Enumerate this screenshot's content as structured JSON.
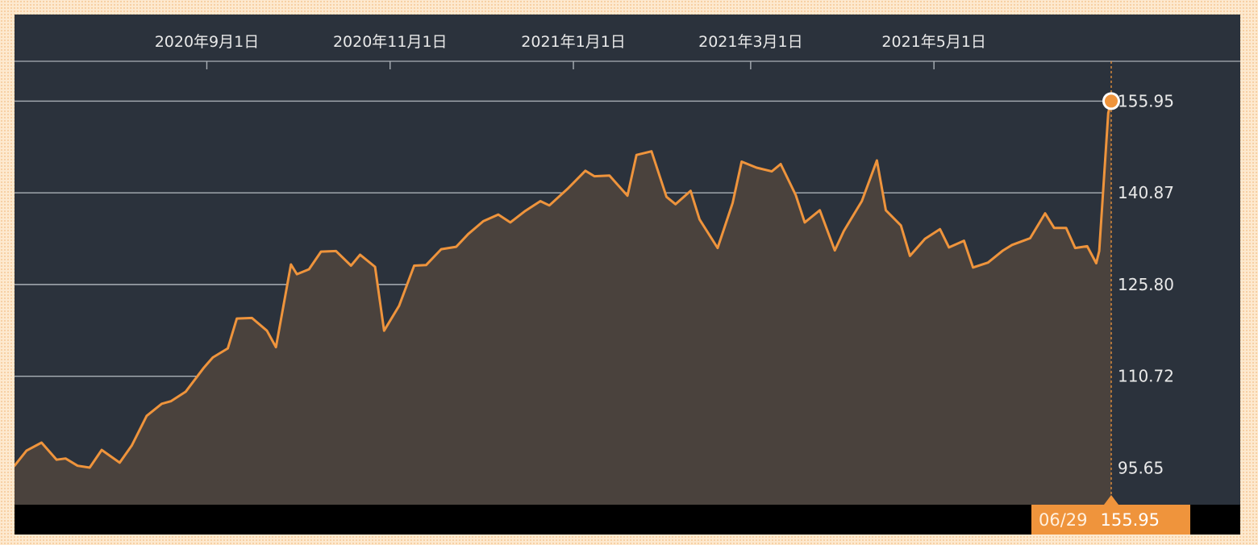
{
  "chart_data": {
    "type": "area",
    "x_tick_labels": [
      "2020年9月1日",
      "2020年11月1日",
      "2021年1月1日",
      "2021年3月1日",
      "2021年5月1日"
    ],
    "x_tick_dates": [
      "2020-09-01",
      "2020-11-01",
      "2021-01-01",
      "2021-03-01",
      "2021-05-01"
    ],
    "y_tick_labels": [
      "155.95",
      "140.87",
      "125.80",
      "110.72",
      "95.65"
    ],
    "y_ticks": [
      155.95,
      140.87,
      125.8,
      110.72,
      95.65
    ],
    "xlim": [
      "2020-06-29",
      "2021-06-29"
    ],
    "ylim": [
      89.6,
      162.5
    ],
    "grid": true,
    "colors": {
      "line": "#ef943c",
      "area": "#4a423d",
      "background": "#2b323c",
      "gridline": "#aab0b6",
      "tick_text": "#e9e9e9",
      "page_background": "#fde9cf"
    },
    "series": [
      {
        "x": [
          "2020-06-29",
          "2020-07-03",
          "2020-07-08",
          "2020-07-13",
          "2020-07-16",
          "2020-07-20",
          "2020-07-24",
          "2020-07-28",
          "2020-08-03",
          "2020-08-07",
          "2020-08-12",
          "2020-08-17",
          "2020-08-20",
          "2020-08-25",
          "2020-08-31",
          "2020-09-03",
          "2020-09-08",
          "2020-09-11",
          "2020-09-16",
          "2020-09-21",
          "2020-09-24",
          "2020-09-29",
          "2020-10-01",
          "2020-10-05",
          "2020-10-09",
          "2020-10-14",
          "2020-10-19",
          "2020-10-22",
          "2020-10-27",
          "2020-10-30",
          "2020-11-04",
          "2020-11-09",
          "2020-11-13",
          "2020-11-18",
          "2020-11-23",
          "2020-11-27",
          "2020-12-02",
          "2020-12-07",
          "2020-12-11",
          "2020-12-16",
          "2020-12-21",
          "2020-12-24",
          "2020-12-30",
          "2021-01-05",
          "2021-01-08",
          "2021-01-13",
          "2021-01-19",
          "2021-01-22",
          "2021-01-27",
          "2021-02-01",
          "2021-02-04",
          "2021-02-09",
          "2021-02-12",
          "2021-02-18",
          "2021-02-23",
          "2021-02-26",
          "2021-03-03",
          "2021-03-08",
          "2021-03-11",
          "2021-03-16",
          "2021-03-19",
          "2021-03-24",
          "2021-03-29",
          "2021-04-01",
          "2021-04-07",
          "2021-04-12",
          "2021-04-15",
          "2021-04-20",
          "2021-04-23",
          "2021-04-28",
          "2021-05-03",
          "2021-05-06",
          "2021-05-11",
          "2021-05-14",
          "2021-05-19",
          "2021-05-24",
          "2021-05-27",
          "2021-06-02",
          "2021-06-07",
          "2021-06-10",
          "2021-06-14",
          "2021-06-17",
          "2021-06-21",
          "2021-06-24",
          "2021-06-25",
          "2021-06-28",
          "2021-06-29"
        ],
        "values": [
          96.0,
          98.5,
          99.8,
          97.0,
          97.2,
          96.0,
          95.7,
          98.6,
          96.5,
          99.3,
          104.2,
          106.2,
          106.6,
          108.2,
          112.1,
          113.8,
          115.3,
          120.2,
          120.3,
          118.2,
          115.5,
          129.1,
          127.5,
          128.3,
          131.2,
          131.3,
          128.9,
          130.7,
          128.7,
          118.2,
          122.3,
          128.9,
          129.0,
          131.6,
          132.0,
          134.1,
          136.2,
          137.3,
          136.0,
          137.9,
          139.5,
          138.8,
          141.5,
          144.5,
          143.6,
          143.7,
          140.4,
          147.1,
          147.7,
          140.2,
          139.0,
          141.2,
          136.5,
          131.8,
          139.2,
          146.0,
          145.0,
          144.4,
          145.6,
          140.5,
          136.0,
          138.0,
          131.4,
          134.6,
          139.5,
          146.2,
          138.0,
          135.5,
          130.5,
          133.3,
          134.9,
          131.9,
          133.0,
          128.6,
          129.4,
          131.4,
          132.3,
          133.4,
          137.5,
          135.1,
          135.1,
          131.8,
          132.1,
          129.3,
          131.3,
          154.0,
          155.95
        ]
      }
    ],
    "last_point": {
      "x": "2021-06-29",
      "y": 155.95
    }
  },
  "readout": {
    "date": "06/29",
    "value": "155.95"
  }
}
